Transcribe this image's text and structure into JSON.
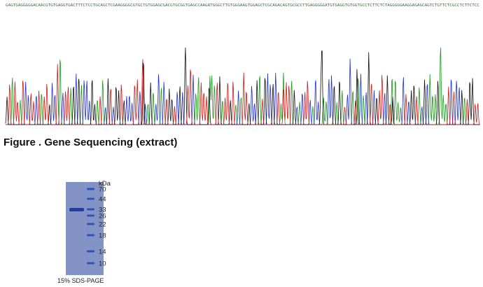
{
  "sequence": "GAGTGAGGGGGACAACGTGTGAGGTGACTTTCTCCTGCAGCTCGAAGGGGCGTGCTGTGGAGCGACGTGCGGTGAGCCAAGATGGGCTTGTGGGAAGTGGAGCTCGCAGACAGTGCGCCTTGAGGGGGATGTGAGGTGTGGTGCCTCTTCTCTAGGGGGAAGGAGAGCAGTCTGTTCTCGCCTCTTCTCC",
  "figure_caption": "Figure . Gene Sequencing (extract)",
  "gel": {
    "unit": "kDa",
    "markers": [
      "70",
      "44",
      "33",
      "26",
      "22",
      "18",
      "14",
      "10"
    ],
    "caption": "15% SDS-PAGE"
  }
}
